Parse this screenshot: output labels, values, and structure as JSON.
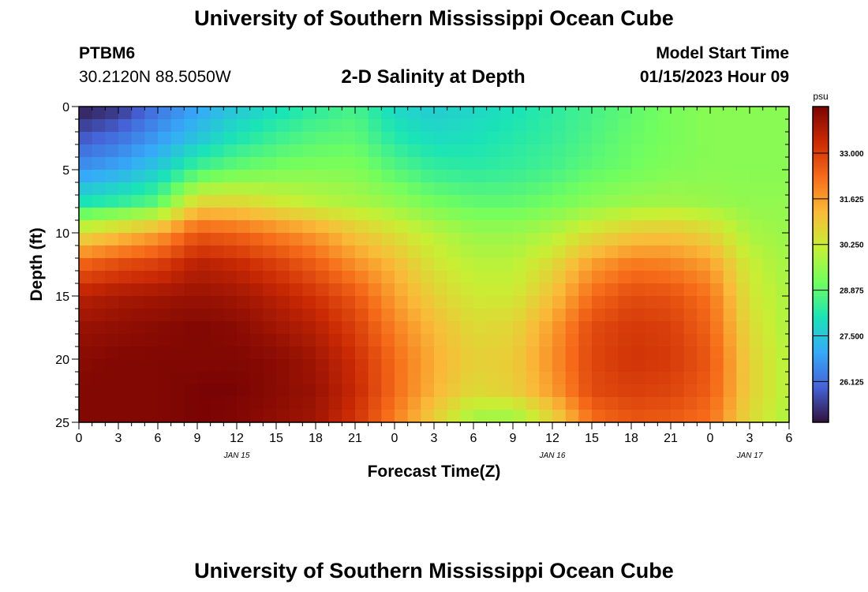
{
  "page": {
    "title_top": "University of Southern Mississippi Ocean Cube",
    "title_bottom": "University of Southern Mississippi Ocean Cube",
    "station_id": "PTBM6",
    "station_coords": "30.2120N  88.5050W",
    "product_title": "2-D Salinity at Depth",
    "model_start_label": "Model Start Time",
    "model_start_value": "01/15/2023 Hour 09"
  },
  "chart_data": {
    "type": "heatmap",
    "title": "2-D Salinity at Depth",
    "xlabel": "Forecast Time(Z)",
    "ylabel": "Depth (ft)",
    "x_hours_range": [
      0,
      54
    ],
    "ylim": [
      0,
      25
    ],
    "y_inverted": true,
    "x_ticks": [
      {
        "hour": 0,
        "label": "0"
      },
      {
        "hour": 3,
        "label": "3"
      },
      {
        "hour": 6,
        "label": "6"
      },
      {
        "hour": 9,
        "label": "9"
      },
      {
        "hour": 12,
        "label": "12"
      },
      {
        "hour": 15,
        "label": "15"
      },
      {
        "hour": 18,
        "label": "18"
      },
      {
        "hour": 21,
        "label": "21"
      },
      {
        "hour": 24,
        "label": "0"
      },
      {
        "hour": 27,
        "label": "3"
      },
      {
        "hour": 30,
        "label": "6"
      },
      {
        "hour": 33,
        "label": "9"
      },
      {
        "hour": 36,
        "label": "12"
      },
      {
        "hour": 39,
        "label": "15"
      },
      {
        "hour": 42,
        "label": "18"
      },
      {
        "hour": 45,
        "label": "21"
      },
      {
        "hour": 48,
        "label": "0"
      },
      {
        "hour": 51,
        "label": "3"
      },
      {
        "hour": 54,
        "label": "6"
      }
    ],
    "date_labels": [
      {
        "hour": 12,
        "label": "JAN 15"
      },
      {
        "hour": 36,
        "label": "JAN 16"
      },
      {
        "hour": 51,
        "label": "JAN 17"
      }
    ],
    "y_ticks": [
      0,
      5,
      10,
      15,
      20,
      25
    ],
    "colorbar": {
      "unit": "psu",
      "range": [
        24.9,
        34.4
      ],
      "ticks": [
        33.0,
        31.625,
        30.25,
        28.875,
        27.5,
        26.125
      ],
      "tick_labels": [
        "33.000",
        "31.625",
        "30.250",
        "28.875",
        "27.500",
        "26.125"
      ],
      "colormap": [
        "#30123b",
        "#4662d7",
        "#36aaf9",
        "#1ae4b6",
        "#72fe5e",
        "#c8ef34",
        "#faba39",
        "#f66b19",
        "#cb2a04",
        "#7a0403"
      ]
    },
    "depth_rows": [
      0,
      2.5,
      5,
      7.5,
      10,
      12.5,
      15,
      17.5,
      20,
      22.5,
      25
    ],
    "time_columns": [
      0,
      3,
      6,
      9,
      12,
      15,
      18,
      21,
      24,
      27,
      30,
      33,
      36,
      39,
      42,
      45,
      48,
      51,
      54
    ],
    "values": [
      [
        25.0,
        25.3,
        26.2,
        26.9,
        27.5,
        27.9,
        28.3,
        28.6,
        27.8,
        27.6,
        27.8,
        28.0,
        28.3,
        28.6,
        28.9,
        29.2,
        29.4,
        29.4,
        29.4
      ],
      [
        25.8,
        26.2,
        26.8,
        27.5,
        28.1,
        28.5,
        28.8,
        28.9,
        28.2,
        27.9,
        28.0,
        28.2,
        28.4,
        28.7,
        29.0,
        29.2,
        29.4,
        29.4,
        29.4
      ],
      [
        26.7,
        27.0,
        27.6,
        28.6,
        29.0,
        29.2,
        29.3,
        29.3,
        28.8,
        28.4,
        28.3,
        28.4,
        28.6,
        28.9,
        29.1,
        29.3,
        29.4,
        29.4,
        29.4
      ],
      [
        28.0,
        28.3,
        28.8,
        30.6,
        30.6,
        30.3,
        30.0,
        29.8,
        29.5,
        29.1,
        28.9,
        28.9,
        29.1,
        29.4,
        29.6,
        29.7,
        29.6,
        29.5,
        29.5
      ],
      [
        30.5,
        31.0,
        31.5,
        32.6,
        32.4,
        32.0,
        31.6,
        31.0,
        30.5,
        30.0,
        29.6,
        29.6,
        29.9,
        30.5,
        30.9,
        31.0,
        30.7,
        29.8,
        29.6
      ],
      [
        32.4,
        32.8,
        33.0,
        33.6,
        33.4,
        33.0,
        32.5,
        31.8,
        31.2,
        30.4,
        30.0,
        30.0,
        30.6,
        31.6,
        32.1,
        32.0,
        31.6,
        30.2,
        29.7
      ],
      [
        33.6,
        33.8,
        33.9,
        34.0,
        33.9,
        33.6,
        33.2,
        32.6,
        31.6,
        30.8,
        30.3,
        30.3,
        31.1,
        32.3,
        32.8,
        32.7,
        32.2,
        30.4,
        29.8
      ],
      [
        34.0,
        34.1,
        34.2,
        34.3,
        34.2,
        33.9,
        33.6,
        33.0,
        32.0,
        31.2,
        30.6,
        30.7,
        31.6,
        32.8,
        33.1,
        33.0,
        32.4,
        30.6,
        29.8
      ],
      [
        34.2,
        34.3,
        34.3,
        34.3,
        34.3,
        34.2,
        33.9,
        33.3,
        32.3,
        31.4,
        30.8,
        30.9,
        31.8,
        32.9,
        33.2,
        33.1,
        32.6,
        30.8,
        29.9
      ],
      [
        34.3,
        34.3,
        34.3,
        34.4,
        34.4,
        34.2,
        34.0,
        33.4,
        32.3,
        31.3,
        30.6,
        30.8,
        31.6,
        32.8,
        33.0,
        32.9,
        32.5,
        30.8,
        29.9
      ],
      [
        34.3,
        34.3,
        34.3,
        34.4,
        34.3,
        34.1,
        33.9,
        33.2,
        32.0,
        30.8,
        29.6,
        29.5,
        30.6,
        32.2,
        32.6,
        32.5,
        32.2,
        30.6,
        29.8
      ]
    ]
  }
}
